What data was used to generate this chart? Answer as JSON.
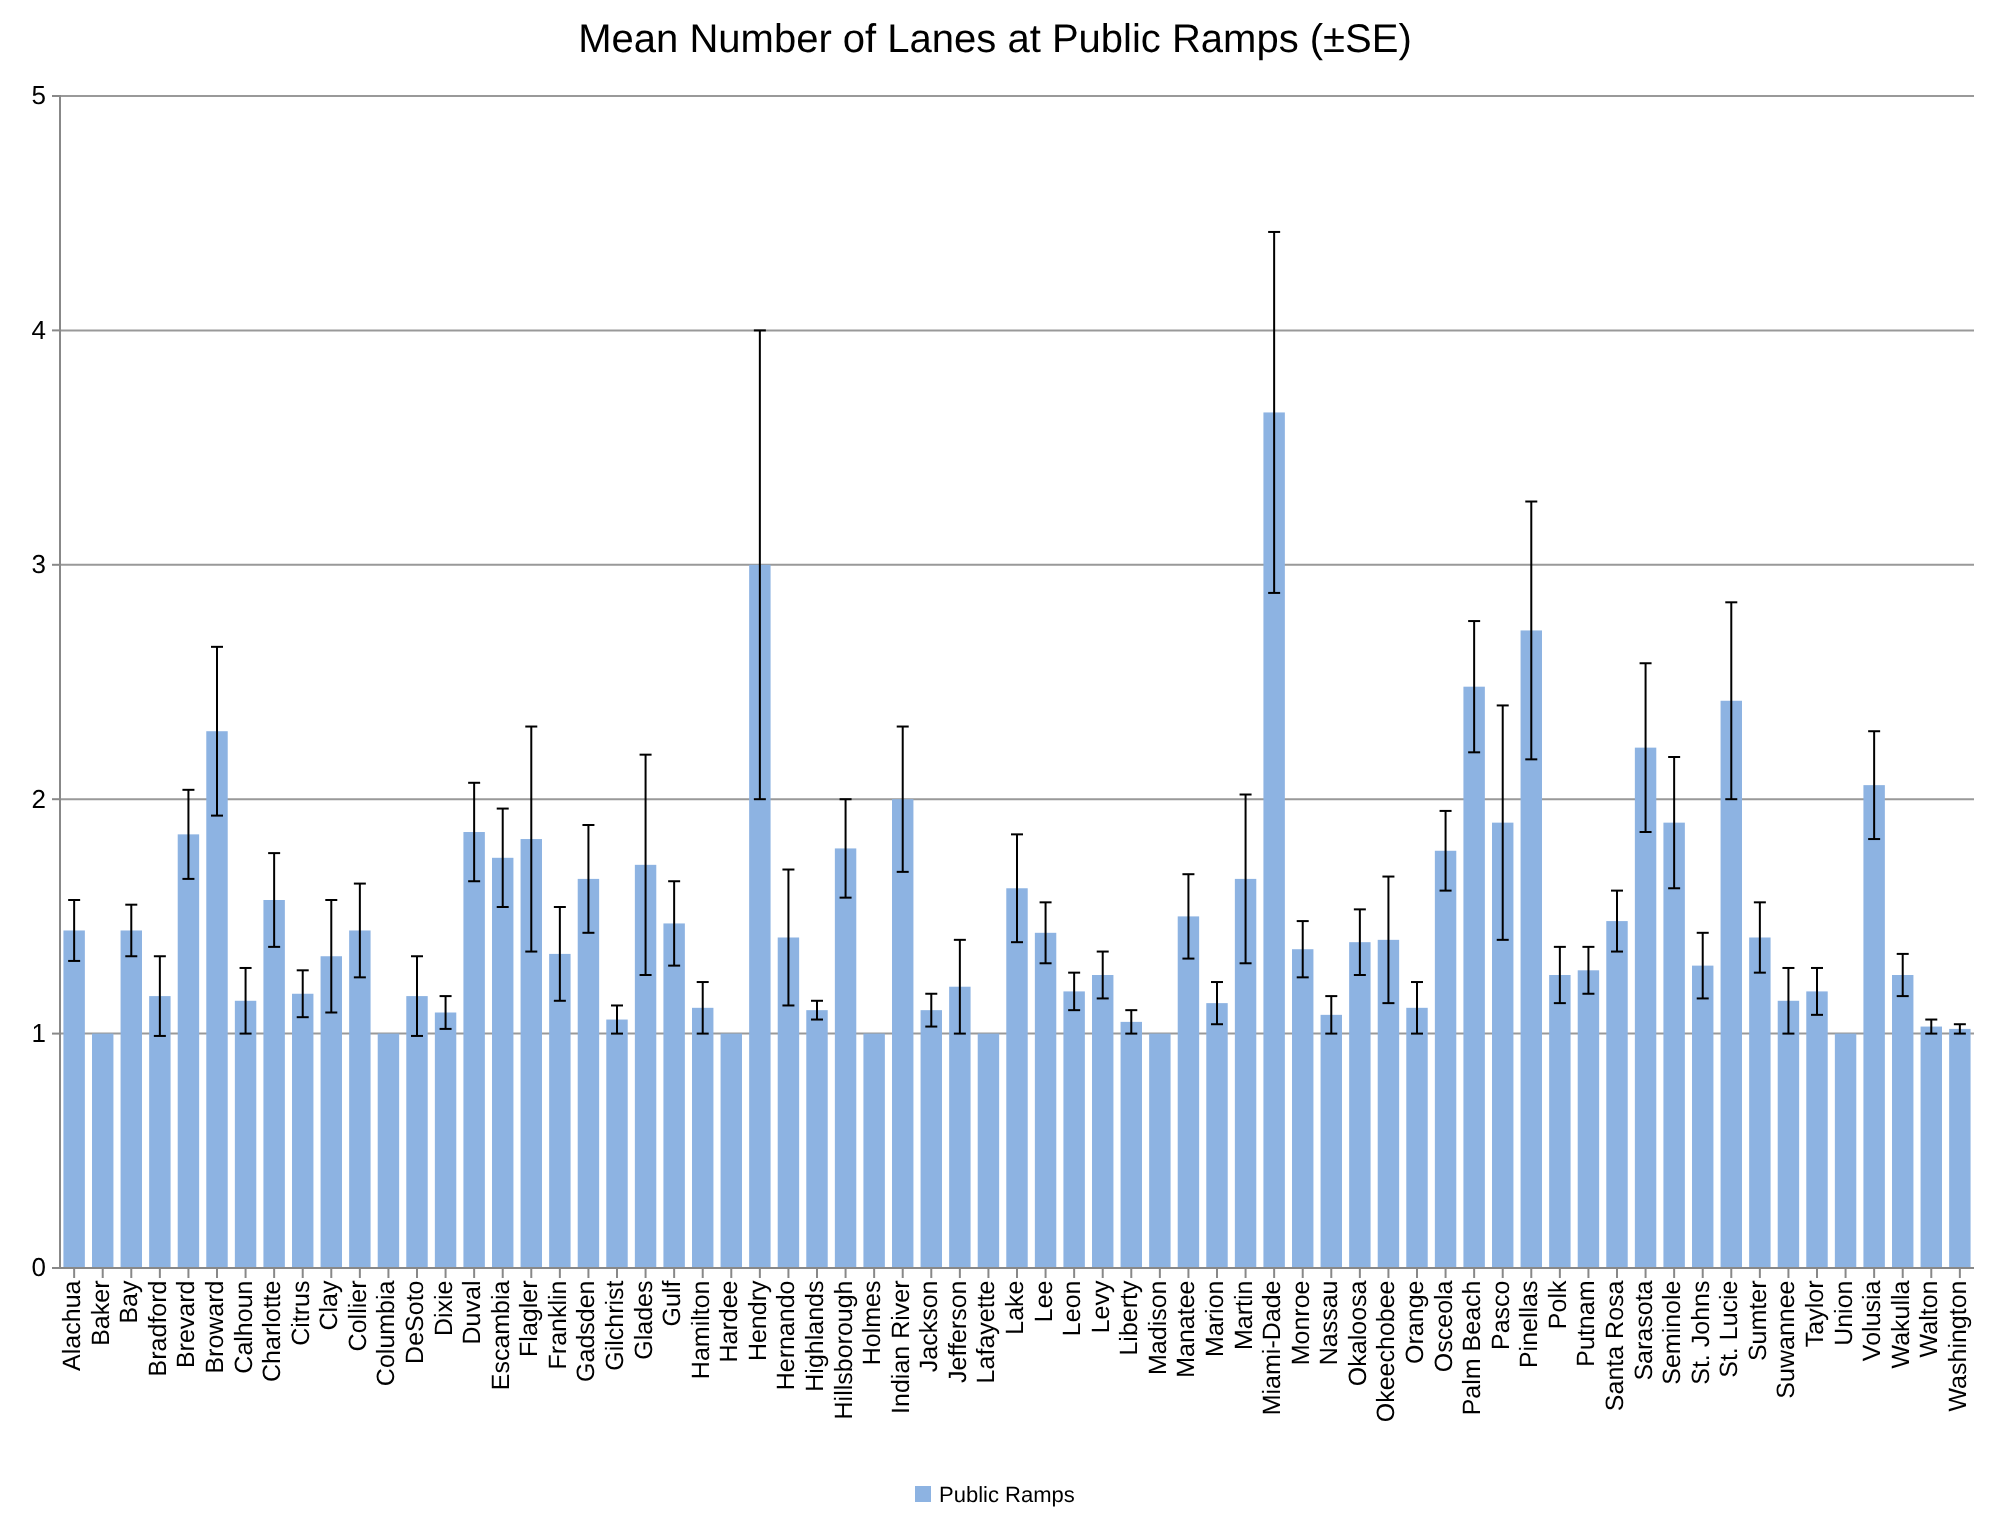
{
  "chart_data": {
    "type": "bar",
    "title": "Mean Number of Lanes at Public Ramps (±SE)",
    "categories": [
      "Alachua",
      "Baker",
      "Bay",
      "Bradford",
      "Brevard",
      "Broward",
      "Calhoun",
      "Charlotte",
      "Citrus",
      "Clay",
      "Collier",
      "Columbia",
      "DeSoto",
      "Dixie",
      "Duval",
      "Escambia",
      "Flagler",
      "Franklin",
      "Gadsden",
      "Gilchrist",
      "Glades",
      "Gulf",
      "Hamilton",
      "Hardee",
      "Hendry",
      "Hernando",
      "Highlands",
      "Hillsborough",
      "Holmes",
      "Indian River",
      "Jackson",
      "Jefferson",
      "Lafayette",
      "Lake",
      "Lee",
      "Leon",
      "Levy",
      "Liberty",
      "Madison",
      "Manatee",
      "Marion",
      "Martin",
      "Miami-Dade",
      "Monroe",
      "Nassau",
      "Okaloosa",
      "Okeechobee",
      "Orange",
      "Osceola",
      "Palm Beach",
      "Pasco",
      "Pinellas",
      "Polk",
      "Putnam",
      "Santa Rosa",
      "Sarasota",
      "Seminole",
      "St. Johns",
      "St. Lucie",
      "Sumter",
      "Suwannee",
      "Taylor",
      "Union",
      "Volusia",
      "Wakulla",
      "Walton",
      "Washington"
    ],
    "series": [
      {
        "name": "Public Ramps",
        "color": "#8db3e2",
        "values": [
          1.44,
          1.0,
          1.44,
          1.16,
          1.85,
          2.29,
          1.14,
          1.57,
          1.17,
          1.33,
          1.44,
          1.0,
          1.16,
          1.09,
          1.86,
          1.75,
          1.83,
          1.34,
          1.66,
          1.06,
          1.72,
          1.47,
          1.11,
          1.0,
          3.0,
          1.41,
          1.1,
          1.79,
          1.0,
          2.0,
          1.1,
          1.2,
          1.0,
          1.62,
          1.43,
          1.18,
          1.25,
          1.05,
          1.0,
          1.5,
          1.13,
          1.66,
          3.65,
          1.36,
          1.08,
          1.39,
          1.4,
          1.11,
          1.78,
          2.48,
          1.9,
          2.72,
          1.25,
          1.27,
          1.48,
          2.22,
          1.9,
          1.29,
          2.42,
          1.41,
          1.14,
          1.18,
          1.0,
          2.06,
          1.25,
          1.03,
          1.02
        ],
        "errors": [
          0.13,
          null,
          0.11,
          0.17,
          0.19,
          0.36,
          0.14,
          0.2,
          0.1,
          0.24,
          0.2,
          null,
          0.17,
          0.07,
          0.21,
          0.21,
          0.48,
          0.2,
          0.23,
          0.06,
          0.47,
          0.18,
          0.11,
          null,
          1.0,
          0.29,
          0.04,
          0.21,
          null,
          0.31,
          0.07,
          0.2,
          null,
          0.23,
          0.13,
          0.08,
          0.1,
          0.05,
          null,
          0.18,
          0.09,
          0.36,
          0.77,
          0.12,
          0.08,
          0.14,
          0.27,
          0.11,
          0.17,
          0.28,
          0.5,
          0.55,
          0.12,
          0.1,
          0.13,
          0.36,
          0.28,
          0.14,
          0.42,
          0.15,
          0.14,
          0.1,
          null,
          0.23,
          0.09,
          0.03,
          0.02
        ]
      }
    ],
    "ylim": [
      0,
      5
    ],
    "yticks": [
      0,
      1,
      2,
      3,
      4,
      5
    ],
    "grid": "y",
    "legend": "bottom"
  }
}
